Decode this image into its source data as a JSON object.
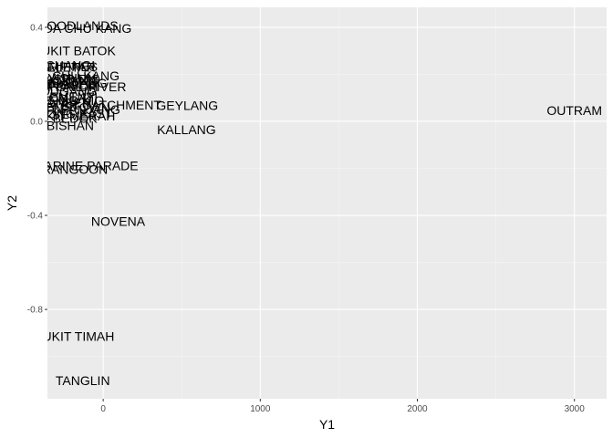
{
  "chart_data": {
    "type": "scatter",
    "title": "",
    "xlabel": "Y1",
    "ylabel": "Y2",
    "xlim": [
      -355,
      3205
    ],
    "ylim": [
      -1.18,
      0.485
    ],
    "x_ticks": [
      0,
      1000,
      2000,
      3000
    ],
    "x_tick_labels": [
      "0",
      "1000",
      "2000",
      "3000"
    ],
    "y_ticks": [
      -0.8,
      -0.4,
      0.0,
      0.4
    ],
    "y_tick_labels": [
      "-0.8",
      "-0.4",
      "0.0",
      "0.4"
    ],
    "grid": true,
    "legend": "none",
    "colors": {
      "panel": "#ebebeb",
      "grid_major": "#ffffff",
      "grid_minor": "#f5f5f5",
      "text": "#000000",
      "tick_text": "#4d4d4d",
      "tick_mark": "#333333"
    },
    "points": [
      {
        "label": "WOODLANDS",
        "x": -170,
        "y": 0.408
      },
      {
        "label": "CHOA CHU KANG",
        "x": -160,
        "y": 0.395
      },
      {
        "label": "BUKIT BATOK",
        "x": -185,
        "y": 0.3
      },
      {
        "label": "TAMPINES",
        "x": -240,
        "y": 0.232
      },
      {
        "label": "CHANGI",
        "x": -210,
        "y": 0.238
      },
      {
        "label": "SELETAR",
        "x": -230,
        "y": 0.23
      },
      {
        "label": "LIM CHU KANG",
        "x": -190,
        "y": 0.194
      },
      {
        "label": "PASIR RIS",
        "x": -220,
        "y": 0.18
      },
      {
        "label": "SENGKANG",
        "x": -260,
        "y": 0.172
      },
      {
        "label": "YISHUN",
        "x": -200,
        "y": 0.185
      },
      {
        "label": "SEMBAWANG",
        "x": -240,
        "y": 0.163
      },
      {
        "label": "PUNGGOL",
        "x": -250,
        "y": 0.155
      },
      {
        "label": "TOA PAYOH",
        "x": -260,
        "y": 0.148
      },
      {
        "label": "SINGAPORE RIVER",
        "x": -230,
        "y": 0.147
      },
      {
        "label": "HOUGANG",
        "x": -250,
        "y": 0.128
      },
      {
        "label": "CLEMENTI",
        "x": -240,
        "y": 0.105
      },
      {
        "label": "BOON LAY",
        "x": -260,
        "y": 0.1
      },
      {
        "label": "ANG MO KIO",
        "x": -240,
        "y": 0.09
      },
      {
        "label": "PIONEER",
        "x": -260,
        "y": 0.08
      },
      {
        "label": "WESTERN WATER CATCHMENT",
        "x": -250,
        "y": 0.07
      },
      {
        "label": "QUEENSTOWN",
        "x": -250,
        "y": 0.06
      },
      {
        "label": "BUKIT PANJANG",
        "x": -210,
        "y": 0.05
      },
      {
        "label": "JURONG EAST",
        "x": -230,
        "y": 0.032
      },
      {
        "label": "BUKIT MERAH",
        "x": -200,
        "y": 0.024
      },
      {
        "label": "BEDOK",
        "x": -180,
        "y": 0.013
      },
      {
        "label": "BISHAN",
        "x": -210,
        "y": -0.017
      },
      {
        "label": "GEYLANG",
        "x": 535,
        "y": 0.067
      },
      {
        "label": "OUTRAM",
        "x": 3000,
        "y": 0.047
      },
      {
        "label": "KALLANG",
        "x": 530,
        "y": -0.036
      },
      {
        "label": "MARINE PARADE",
        "x": -110,
        "y": -0.188
      },
      {
        "label": "RANGOON",
        "x": -180,
        "y": -0.203
      },
      {
        "label": "NOVENA",
        "x": 95,
        "y": -0.425
      },
      {
        "label": "BUKIT TIMAH",
        "x": -185,
        "y": -0.915
      },
      {
        "label": "TANGLIN",
        "x": -130,
        "y": -1.103
      }
    ]
  }
}
